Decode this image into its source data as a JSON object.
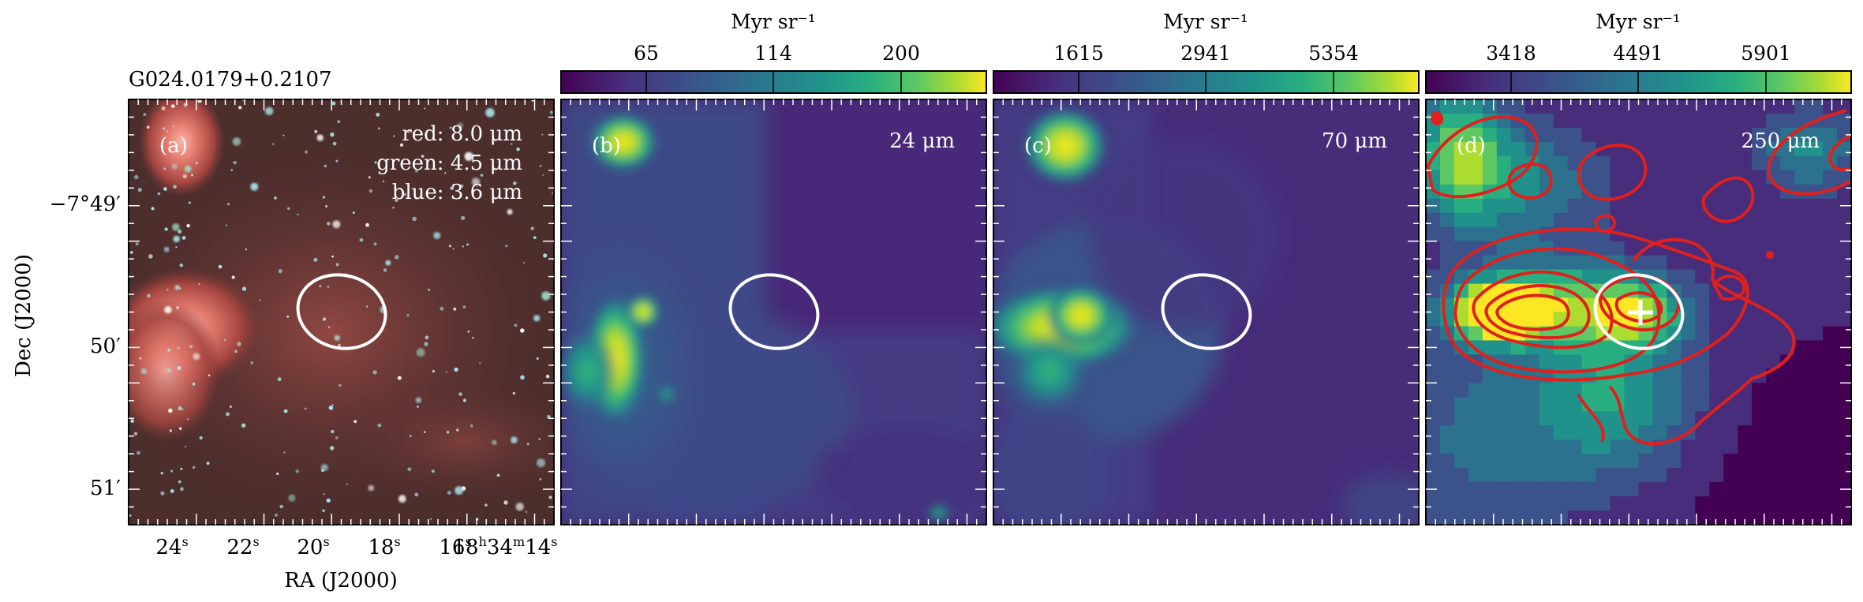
{
  "figure": {
    "source_title": "G024.0179+0.2107",
    "y_axis_label": "Dec (J2000)",
    "x_axis_label": "RA (J2000)",
    "dec_ticks": [
      "−7°49′",
      "50′",
      "51′"
    ],
    "ra_ticks": [
      "24",
      "22",
      "20",
      "18",
      "16",
      "18",
      "34",
      "14"
    ],
    "ra_tick_units": [
      "s",
      "s",
      "s",
      "s",
      "s",
      "h",
      "m",
      "s"
    ],
    "colors": {
      "ellipse": "#ffffff",
      "contour": "#e0201c",
      "cross": "#ffffff",
      "frame": "#000000"
    },
    "colormap": "viridis",
    "panels": [
      {
        "id": "a",
        "label": "(a)",
        "type": "rgb-composite",
        "legend": [
          "red: 8.0 μm",
          "green: 4.5 μm",
          "blue: 3.6 μm"
        ],
        "has_colorbar": false,
        "has_contours": false,
        "has_cross": false
      },
      {
        "id": "b",
        "label": "(b)",
        "wavelength": "24 μm",
        "colorbar_title": "Myr sr⁻¹",
        "colorbar_ticks": [
          "65",
          "114",
          "200"
        ],
        "has_colorbar": true,
        "has_contours": false,
        "has_cross": false
      },
      {
        "id": "c",
        "label": "(c)",
        "wavelength": "70 μm",
        "colorbar_title": "Myr sr⁻¹",
        "colorbar_ticks": [
          "1615",
          "2941",
          "5354"
        ],
        "has_colorbar": true,
        "has_contours": false,
        "has_cross": false
      },
      {
        "id": "d",
        "label": "(d)",
        "wavelength": "250 μm",
        "colorbar_title": "Myr sr⁻¹",
        "colorbar_ticks": [
          "3418",
          "4491",
          "5901"
        ],
        "has_colorbar": true,
        "has_contours": true,
        "has_cross": true
      }
    ]
  }
}
